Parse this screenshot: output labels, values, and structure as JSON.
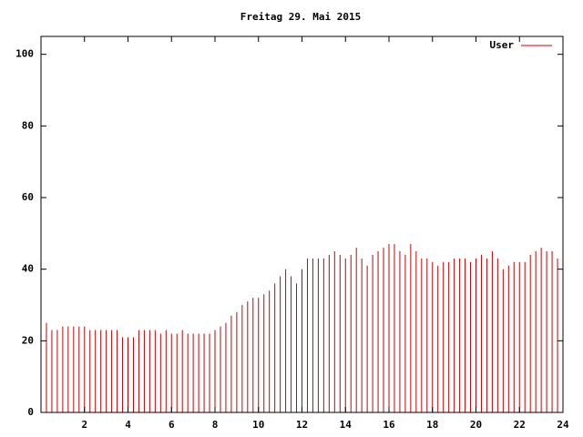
{
  "chart_data": {
    "type": "impulse",
    "title": "Freitag 29. Mai 2015",
    "x": [
      0,
      0.25,
      0.5,
      0.75,
      1,
      1.25,
      1.5,
      1.75,
      2,
      2.25,
      2.5,
      2.75,
      3,
      3.25,
      3.5,
      3.75,
      4,
      4.25,
      4.5,
      4.75,
      5,
      5.25,
      5.5,
      5.75,
      6,
      6.25,
      6.5,
      6.75,
      7,
      7.25,
      7.5,
      7.75,
      8,
      8.25,
      8.5,
      8.75,
      9,
      9.25,
      9.5,
      9.75,
      10,
      10.25,
      10.5,
      10.75,
      11,
      11.25,
      11.5,
      11.75,
      12,
      12.25,
      12.5,
      12.75,
      13,
      13.25,
      13.5,
      13.75,
      14,
      14.25,
      14.5,
      14.75,
      15,
      15.25,
      15.5,
      15.75,
      16,
      16.25,
      16.5,
      16.75,
      17,
      17.25,
      17.5,
      17.75,
      18,
      18.25,
      18.5,
      18.75,
      19,
      19.25,
      19.5,
      19.75,
      20,
      20.25,
      20.5,
      20.75,
      21,
      21.25,
      21.5,
      21.75,
      22,
      22.25,
      22.5,
      22.75,
      23,
      23.25,
      23.5,
      23.75,
      24
    ],
    "series": [
      {
        "name": "User",
        "color": "#cc0000",
        "values": [
          28,
          25,
          23,
          23,
          24,
          24,
          24,
          24,
          24,
          23,
          23,
          23,
          23,
          23,
          23,
          21,
          21,
          21,
          23,
          23,
          23,
          23,
          22,
          23,
          22,
          22,
          23,
          22,
          22,
          22,
          22,
          22,
          23,
          24,
          25,
          27,
          28,
          30,
          31,
          32,
          32,
          33,
          34,
          36,
          38,
          40,
          38,
          36,
          40,
          43,
          43,
          43,
          43,
          44,
          45,
          44,
          43,
          44,
          46,
          43,
          41,
          44,
          45,
          46,
          47,
          47,
          45,
          44,
          47,
          45,
          43,
          43,
          42,
          41,
          42,
          42,
          43,
          43,
          43,
          42,
          43,
          44,
          43,
          45,
          43,
          40,
          41,
          42,
          42,
          42,
          44,
          45,
          46,
          45,
          45,
          43,
          40
        ]
      }
    ],
    "xlim": [
      0,
      24
    ],
    "xticks": [
      2,
      4,
      6,
      8,
      10,
      12,
      14,
      16,
      18,
      20,
      22,
      24
    ],
    "ylim": [
      0,
      105
    ],
    "yticks": [
      0,
      20,
      40,
      60,
      80,
      100
    ],
    "legend": "top-right"
  }
}
